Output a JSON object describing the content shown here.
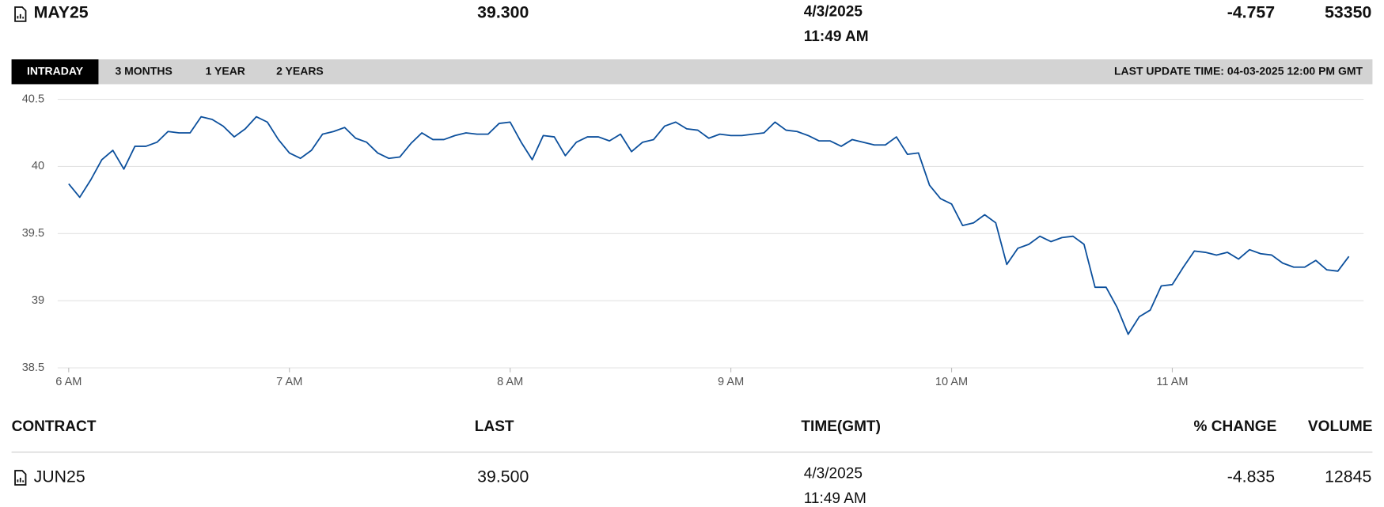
{
  "quote": {
    "contract": "MAY25",
    "last": "39.300",
    "date": "4/3/2025",
    "time": "11:49 AM",
    "change": "-4.757",
    "volume": "53350"
  },
  "tabs": [
    "INTRADAY",
    "3 MONTHS",
    "1 YEAR",
    "2 YEARS"
  ],
  "last_update": "LAST UPDATE TIME: 04-03-2025 12:00 PM GMT",
  "chart_data": {
    "type": "line",
    "x": [
      360,
      363,
      366,
      369,
      372,
      375,
      378,
      381,
      384,
      387,
      390,
      393,
      396,
      399,
      402,
      405,
      408,
      411,
      414,
      417,
      420,
      423,
      426,
      429,
      432,
      435,
      438,
      441,
      444,
      447,
      450,
      453,
      456,
      459,
      462,
      465,
      468,
      471,
      474,
      477,
      480,
      483,
      486,
      489,
      492,
      495,
      498,
      501,
      504,
      507,
      510,
      513,
      516,
      519,
      522,
      525,
      528,
      531,
      534,
      537,
      540,
      543,
      546,
      549,
      552,
      555,
      558,
      561,
      564,
      567,
      570,
      573,
      576,
      579,
      582,
      585,
      588,
      591,
      594,
      597,
      600,
      603,
      606,
      609,
      612,
      615,
      618,
      621,
      624,
      627,
      630,
      633,
      636,
      639,
      642,
      645,
      648,
      651,
      654,
      657,
      660,
      663,
      666,
      669,
      672,
      675,
      678,
      681,
      684,
      687,
      690,
      693,
      696,
      699,
      702,
      705,
      708
    ],
    "series": [
      {
        "color": "#0b4f9c",
        "values": [
          39.87,
          39.77,
          39.9,
          40.05,
          40.12,
          39.98,
          40.15,
          40.15,
          40.18,
          40.26,
          40.25,
          40.25,
          40.37,
          40.35,
          40.3,
          40.22,
          40.28,
          40.37,
          40.33,
          40.2,
          40.1,
          40.06,
          40.12,
          40.24,
          40.26,
          40.29,
          40.21,
          40.18,
          40.1,
          40.06,
          40.07,
          40.17,
          40.25,
          40.2,
          40.2,
          40.23,
          40.25,
          40.24,
          40.24,
          40.32,
          40.33,
          40.18,
          40.05,
          40.23,
          40.22,
          40.08,
          40.18,
          40.22,
          40.22,
          40.19,
          40.24,
          40.11,
          40.18,
          40.2,
          40.3,
          40.33,
          40.28,
          40.27,
          40.21,
          40.24,
          40.23,
          40.23,
          40.24,
          40.25,
          40.33,
          40.27,
          40.26,
          40.23,
          40.19,
          40.19,
          40.15,
          40.2,
          40.18,
          40.16,
          40.16,
          40.22,
          40.09,
          40.1,
          39.86,
          39.76,
          39.72,
          39.56,
          39.58,
          39.64,
          39.58,
          39.27,
          39.39,
          39.42,
          39.48,
          39.44,
          39.47,
          39.48,
          39.42,
          39.1,
          39.1,
          38.95,
          38.75,
          38.88,
          38.93,
          39.11,
          39.12,
          39.25,
          39.37,
          39.36,
          39.34,
          39.36,
          39.31,
          39.38,
          39.35,
          39.34,
          39.28,
          39.25,
          39.25,
          39.3,
          39.23,
          39.22,
          39.33
        ]
      }
    ],
    "xlim": [
      357,
      712
    ],
    "xticks": [
      {
        "value": 360,
        "label": "6 AM"
      },
      {
        "value": 420,
        "label": "7 AM"
      },
      {
        "value": 480,
        "label": "8 AM"
      },
      {
        "value": 540,
        "label": "9 AM"
      },
      {
        "value": 600,
        "label": "10 AM"
      },
      {
        "value": 660,
        "label": "11 AM"
      }
    ],
    "ylim": [
      38.5,
      40.5
    ],
    "yticks": [
      38.5,
      39,
      39.5,
      40,
      40.5
    ],
    "grid": true
  },
  "table": {
    "headers": [
      "CONTRACT",
      "LAST",
      "TIME(GMT)",
      "% CHANGE",
      "VOLUME"
    ],
    "rows": [
      [
        "JUN25",
        "39.500",
        "4/3/2025",
        "11:49 AM",
        "-4.835",
        "12845"
      ]
    ]
  }
}
